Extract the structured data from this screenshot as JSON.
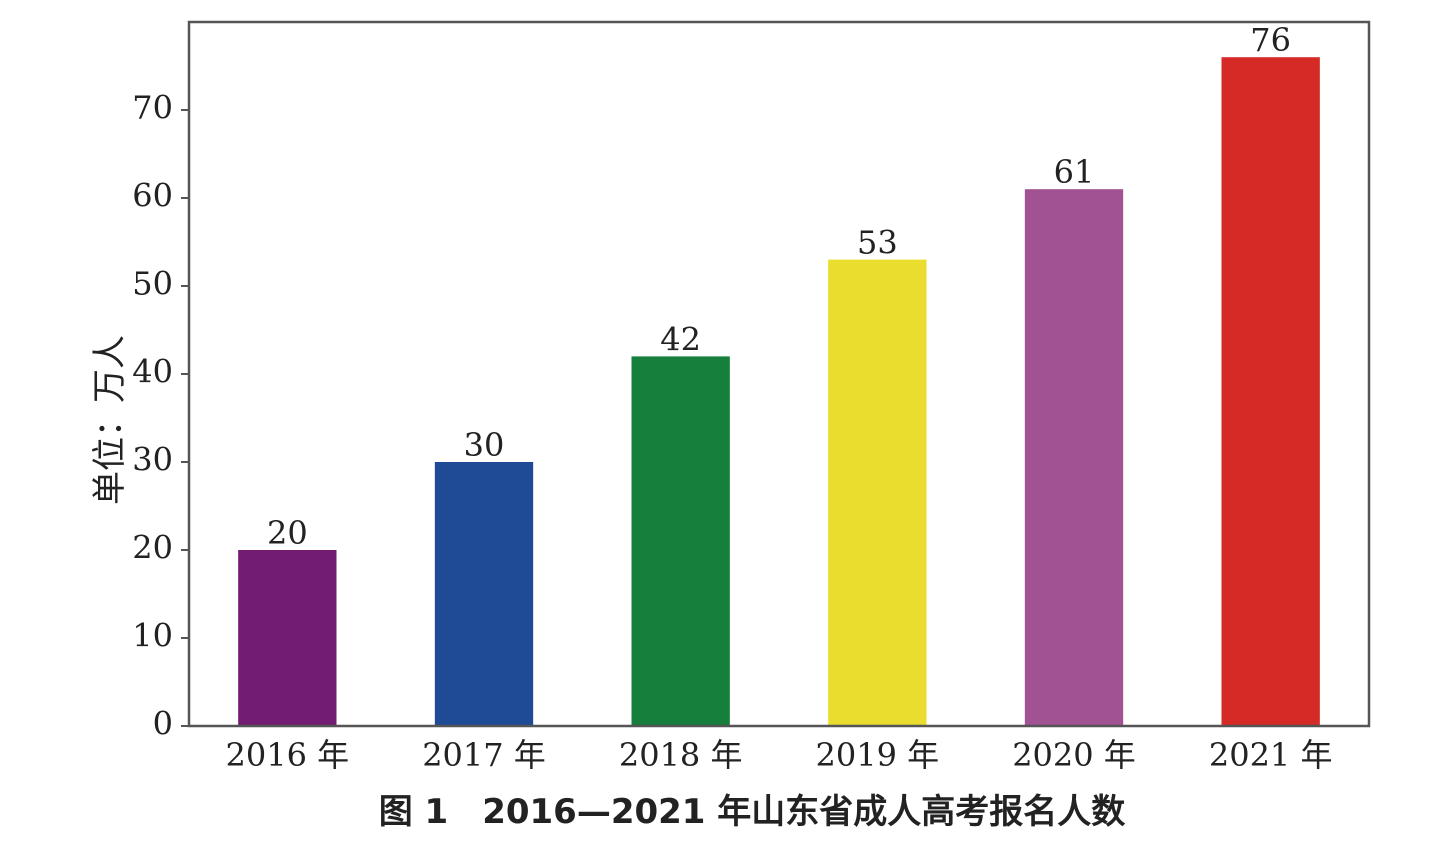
{
  "chart_data": {
    "type": "bar",
    "categories": [
      "2016 年",
      "2017 年",
      "2018 年",
      "2019 年",
      "2020 年",
      "2021 年"
    ],
    "values": [
      20,
      30,
      42,
      53,
      61,
      76
    ],
    "data_labels": [
      "20",
      "30",
      "42",
      "53",
      "61",
      "76"
    ],
    "colors": [
      "#721c74",
      "#1f4a95",
      "#157f3b",
      "#eadd2e",
      "#a05293",
      "#d52a25"
    ],
    "ylabel": "单位：万人",
    "xlabel": "",
    "ylim": [
      0,
      80
    ],
    "yticks": [
      0,
      10,
      20,
      30,
      40,
      50,
      60,
      70
    ],
    "ytick_labels": [
      "0",
      "10",
      "20",
      "30",
      "40",
      "50",
      "60",
      "70"
    ],
    "grid": false,
    "caption": "图 1　2016—2021 年山东省成人高考报名人数"
  }
}
